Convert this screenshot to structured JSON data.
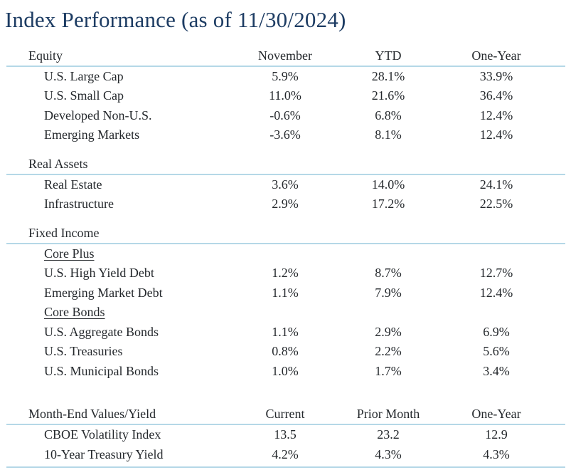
{
  "title": "Index Performance (as of 11/30/2024)",
  "colors": {
    "title": "#1d3c63",
    "text": "#24282c",
    "rule": "#b5d8e7"
  },
  "table": {
    "sections": [
      {
        "name": "Equity",
        "columns": [
          "November",
          "YTD",
          "One-Year"
        ],
        "rows": [
          {
            "label": "U.S. Large Cap",
            "values": [
              "5.9%",
              "28.1%",
              "33.9%"
            ]
          },
          {
            "label": "U.S. Small Cap",
            "values": [
              "11.0%",
              "21.6%",
              "36.4%"
            ]
          },
          {
            "label": "Developed Non-U.S.",
            "values": [
              "-0.6%",
              "6.8%",
              "12.4%"
            ]
          },
          {
            "label": "Emerging Markets",
            "values": [
              "-3.6%",
              "8.1%",
              "12.4%"
            ]
          }
        ]
      },
      {
        "name": "Real Assets",
        "rows": [
          {
            "label": "Real Estate",
            "values": [
              "3.6%",
              "14.0%",
              "24.1%"
            ]
          },
          {
            "label": "Infrastructure",
            "values": [
              "2.9%",
              "17.2%",
              "22.5%"
            ]
          }
        ]
      },
      {
        "name": "Fixed Income",
        "rows": [
          {
            "label": "Core Plus",
            "underline": true,
            "values": [
              "",
              "",
              ""
            ]
          },
          {
            "label": "U.S. High Yield Debt",
            "values": [
              "1.2%",
              "8.7%",
              "12.7%"
            ]
          },
          {
            "label": "Emerging Market Debt",
            "values": [
              "1.1%",
              "7.9%",
              "12.4%"
            ]
          },
          {
            "label": "Core Bonds",
            "underline": true,
            "values": [
              "",
              "",
              ""
            ]
          },
          {
            "label": "U.S. Aggregate Bonds",
            "values": [
              "1.1%",
              "2.9%",
              "6.9%"
            ]
          },
          {
            "label": "U.S. Treasuries",
            "values": [
              "0.8%",
              "2.2%",
              "5.6%"
            ]
          },
          {
            "label": "U.S. Municipal Bonds",
            "values": [
              "1.0%",
              "1.7%",
              "3.4%"
            ]
          }
        ]
      },
      {
        "name": "Month-End Values/Yield",
        "columns": [
          "Current",
          "Prior Month",
          "One-Year"
        ],
        "bottom_rule": true,
        "rows": [
          {
            "label": "CBOE Volatility Index",
            "values": [
              "13.5",
              "23.2",
              "12.9"
            ]
          },
          {
            "label": "10-Year Treasury Yield",
            "values": [
              "4.2%",
              "4.3%",
              "4.3%"
            ]
          }
        ]
      }
    ]
  }
}
